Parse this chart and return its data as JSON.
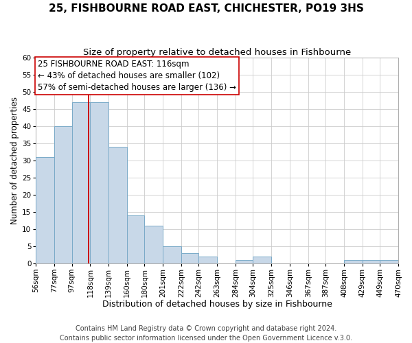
{
  "title": "25, FISHBOURNE ROAD EAST, CHICHESTER, PO19 3HS",
  "subtitle": "Size of property relative to detached houses in Fishbourne",
  "xlabel": "Distribution of detached houses by size in Fishbourne",
  "ylabel": "Number of detached properties",
  "bin_edges": [
    56,
    77,
    97,
    118,
    139,
    160,
    180,
    201,
    222,
    242,
    263,
    284,
    304,
    325,
    346,
    367,
    387,
    408,
    429,
    449,
    470
  ],
  "bin_labels": [
    "56sqm",
    "77sqm",
    "97sqm",
    "118sqm",
    "139sqm",
    "160sqm",
    "180sqm",
    "201sqm",
    "222sqm",
    "242sqm",
    "263sqm",
    "284sqm",
    "304sqm",
    "325sqm",
    "346sqm",
    "367sqm",
    "387sqm",
    "408sqm",
    "429sqm",
    "449sqm",
    "470sqm"
  ],
  "counts": [
    31,
    40,
    47,
    47,
    34,
    14,
    11,
    5,
    3,
    2,
    0,
    1,
    2,
    0,
    0,
    0,
    0,
    1,
    1,
    1
  ],
  "bar_color": "#c8d8e8",
  "bar_edge_color": "#7aaac8",
  "grid_color": "#cccccc",
  "property_line_x": 116,
  "vline_color": "#cc0000",
  "annotation_text": "25 FISHBOURNE ROAD EAST: 116sqm\n← 43% of detached houses are smaller (102)\n57% of semi-detached houses are larger (136) →",
  "annotation_box_edgecolor": "#cc0000",
  "ylim": [
    0,
    60
  ],
  "yticks": [
    0,
    5,
    10,
    15,
    20,
    25,
    30,
    35,
    40,
    45,
    50,
    55,
    60
  ],
  "footer1": "Contains HM Land Registry data © Crown copyright and database right 2024.",
  "footer2": "Contains public sector information licensed under the Open Government Licence v.3.0.",
  "title_fontsize": 11,
  "subtitle_fontsize": 9.5,
  "xlabel_fontsize": 9,
  "ylabel_fontsize": 8.5,
  "annotation_fontsize": 8.5,
  "tick_fontsize": 7.5,
  "footer_fontsize": 7
}
